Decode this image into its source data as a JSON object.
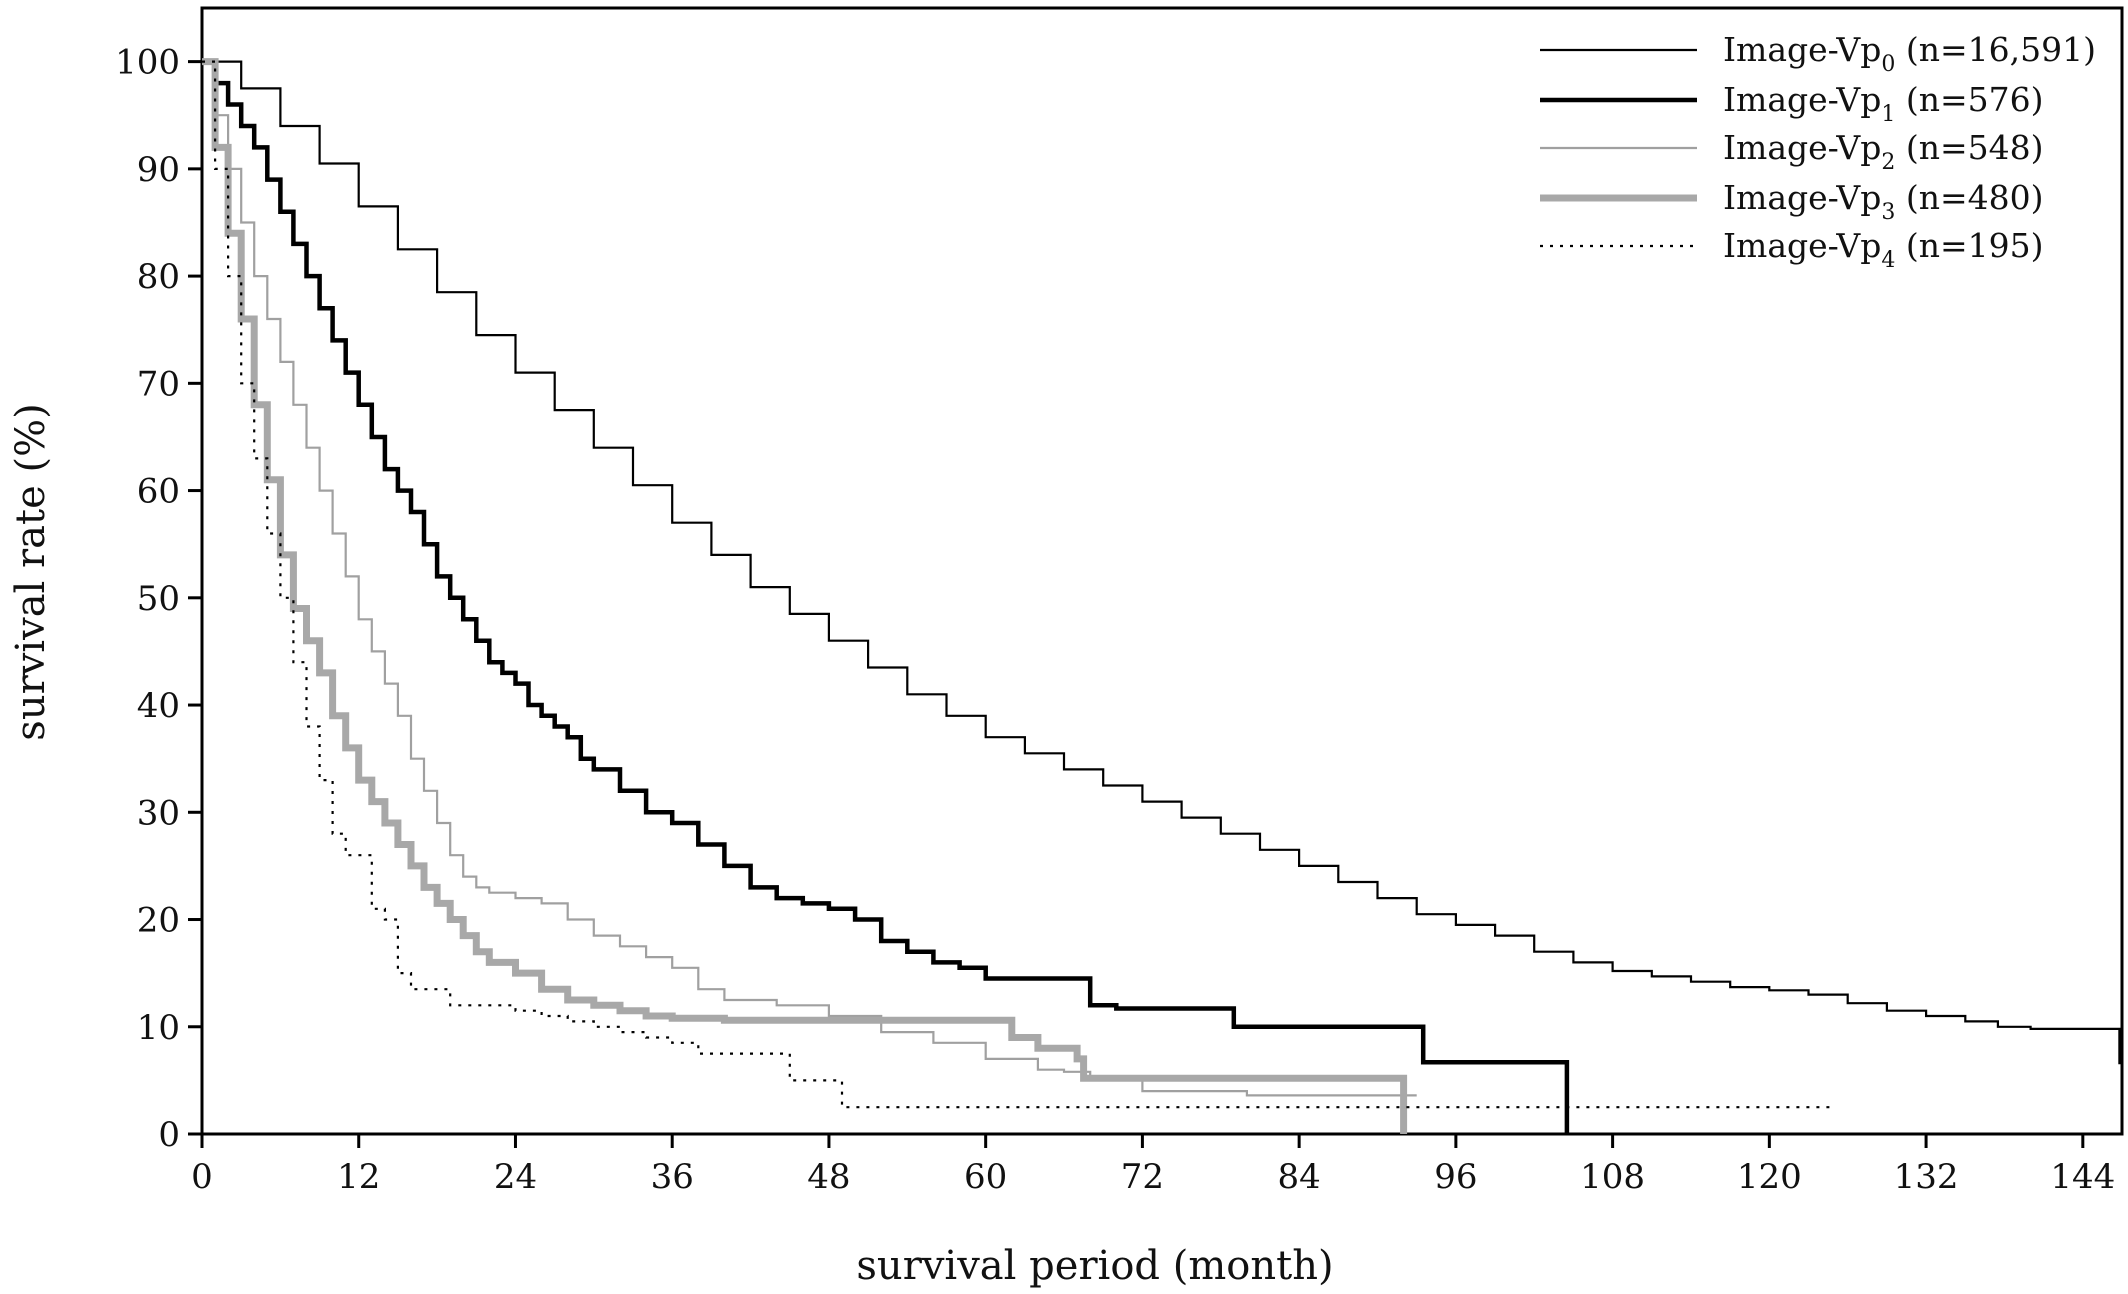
{
  "chart_data": {
    "type": "line",
    "title": "",
    "xlabel": "survival period (month)",
    "ylabel": "survival rate (%)",
    "xlim": [
      0,
      147
    ],
    "ylim": [
      0,
      105
    ],
    "xticks": [
      0,
      12,
      24,
      36,
      48,
      60,
      72,
      84,
      96,
      108,
      120,
      132,
      144
    ],
    "yticks": [
      0,
      10,
      20,
      30,
      40,
      50,
      60,
      70,
      80,
      90,
      100
    ],
    "grid": false,
    "legend_position": "top-right",
    "series": [
      {
        "name": "Image-Vp0 (n=16,591)",
        "label_main": "Image-Vp",
        "label_sub": "0",
        "label_n": "(n=16,591)",
        "color": "#000000",
        "width": 2.2,
        "dash": "",
        "points": [
          [
            0,
            100
          ],
          [
            3,
            97.5
          ],
          [
            6,
            94
          ],
          [
            9,
            90.5
          ],
          [
            12,
            86.5
          ],
          [
            15,
            82.5
          ],
          [
            18,
            78.5
          ],
          [
            21,
            74.5
          ],
          [
            24,
            71
          ],
          [
            27,
            67.5
          ],
          [
            30,
            64
          ],
          [
            33,
            60.5
          ],
          [
            36,
            57
          ],
          [
            39,
            54
          ],
          [
            42,
            51
          ],
          [
            45,
            48.5
          ],
          [
            48,
            46
          ],
          [
            51,
            43.5
          ],
          [
            54,
            41
          ],
          [
            57,
            39
          ],
          [
            60,
            37
          ],
          [
            63,
            35.5
          ],
          [
            66,
            34
          ],
          [
            69,
            32.5
          ],
          [
            72,
            31
          ],
          [
            75,
            29.5
          ],
          [
            78,
            28
          ],
          [
            81,
            26.5
          ],
          [
            84,
            25
          ],
          [
            87,
            23.5
          ],
          [
            90,
            22
          ],
          [
            93,
            20.5
          ],
          [
            96,
            19.5
          ],
          [
            99,
            18.5
          ],
          [
            102,
            17
          ],
          [
            105,
            16
          ],
          [
            108,
            15.2
          ],
          [
            111,
            14.7
          ],
          [
            114,
            14.2
          ],
          [
            117,
            13.7
          ],
          [
            120,
            13.4
          ],
          [
            123,
            13
          ],
          [
            126,
            12.2
          ],
          [
            129,
            11.5
          ],
          [
            132,
            11
          ],
          [
            135,
            10.5
          ],
          [
            137.5,
            10
          ],
          [
            140,
            9.8
          ],
          [
            146.8,
            9.8
          ],
          [
            146.8,
            6.5
          ]
        ]
      },
      {
        "name": "Image-Vp1 (n=576)",
        "label_main": "Image-Vp",
        "label_sub": "1",
        "label_n": "(n=576)",
        "color": "#000000",
        "width": 4.5,
        "dash": "",
        "points": [
          [
            0,
            100
          ],
          [
            1,
            98
          ],
          [
            2,
            96
          ],
          [
            3,
            94
          ],
          [
            4,
            92
          ],
          [
            5,
            89
          ],
          [
            6,
            86
          ],
          [
            7,
            83
          ],
          [
            8,
            80
          ],
          [
            9,
            77
          ],
          [
            10,
            74
          ],
          [
            11,
            71
          ],
          [
            12,
            68
          ],
          [
            13,
            65
          ],
          [
            14,
            62
          ],
          [
            15,
            60
          ],
          [
            16,
            58
          ],
          [
            17,
            55
          ],
          [
            18,
            52
          ],
          [
            19,
            50
          ],
          [
            20,
            48
          ],
          [
            21,
            46
          ],
          [
            22,
            44
          ],
          [
            23,
            43
          ],
          [
            24,
            42
          ],
          [
            25,
            40
          ],
          [
            26,
            39
          ],
          [
            27,
            38
          ],
          [
            28,
            37
          ],
          [
            29,
            35
          ],
          [
            30,
            34
          ],
          [
            32,
            32
          ],
          [
            34,
            30
          ],
          [
            36,
            29
          ],
          [
            38,
            27
          ],
          [
            40,
            25
          ],
          [
            42,
            23
          ],
          [
            44,
            22
          ],
          [
            46,
            21.5
          ],
          [
            48,
            21
          ],
          [
            50,
            20
          ],
          [
            52,
            18
          ],
          [
            54,
            17
          ],
          [
            56,
            16
          ],
          [
            58,
            15.5
          ],
          [
            60,
            14.5
          ],
          [
            62,
            14.5
          ],
          [
            64,
            14.5
          ],
          [
            66,
            14.5
          ],
          [
            67,
            14.5
          ],
          [
            68,
            12
          ],
          [
            70,
            11.7
          ],
          [
            76,
            11.7
          ],
          [
            79,
            11.7
          ],
          [
            79,
            10
          ],
          [
            93.5,
            10
          ],
          [
            93.5,
            6.7
          ],
          [
            104.5,
            6.7
          ],
          [
            104.5,
            0
          ]
        ]
      },
      {
        "name": "Image-Vp2 (n=548)",
        "label_main": "Image-Vp",
        "label_sub": "2",
        "label_n": "(n=548)",
        "color": "#a0a0a0",
        "width": 2.2,
        "dash": "",
        "points": [
          [
            0,
            100
          ],
          [
            1,
            95
          ],
          [
            2,
            90
          ],
          [
            3,
            85
          ],
          [
            4,
            80
          ],
          [
            5,
            76
          ],
          [
            6,
            72
          ],
          [
            7,
            68
          ],
          [
            8,
            64
          ],
          [
            9,
            60
          ],
          [
            10,
            56
          ],
          [
            11,
            52
          ],
          [
            12,
            48
          ],
          [
            13,
            45
          ],
          [
            14,
            42
          ],
          [
            15,
            39
          ],
          [
            16,
            35
          ],
          [
            17,
            32
          ],
          [
            18,
            29
          ],
          [
            19,
            26
          ],
          [
            20,
            24
          ],
          [
            21,
            23
          ],
          [
            22,
            22.5
          ],
          [
            24,
            22
          ],
          [
            26,
            21.5
          ],
          [
            28,
            20
          ],
          [
            30,
            18.5
          ],
          [
            32,
            17.5
          ],
          [
            34,
            16.5
          ],
          [
            36,
            15.5
          ],
          [
            38,
            13.5
          ],
          [
            40,
            12.5
          ],
          [
            44,
            12
          ],
          [
            48,
            11
          ],
          [
            52,
            9.5
          ],
          [
            56,
            8.5
          ],
          [
            60,
            7
          ],
          [
            64,
            6
          ],
          [
            66,
            5.8
          ],
          [
            68,
            5
          ],
          [
            72,
            4
          ],
          [
            80,
            3.6
          ],
          [
            93,
            3.6
          ]
        ]
      },
      {
        "name": "Image-Vp3 (n=480)",
        "label_main": "Image-Vp",
        "label_sub": "3",
        "label_n": "(n=480)",
        "color": "#a8a8a8",
        "width": 7,
        "dash": "",
        "points": [
          [
            0,
            100
          ],
          [
            1,
            92
          ],
          [
            2,
            84
          ],
          [
            3,
            76
          ],
          [
            4,
            68
          ],
          [
            5,
            61
          ],
          [
            6,
            54
          ],
          [
            7,
            49
          ],
          [
            8,
            46
          ],
          [
            9,
            43
          ],
          [
            10,
            39
          ],
          [
            11,
            36
          ],
          [
            12,
            33
          ],
          [
            13,
            31
          ],
          [
            14,
            29
          ],
          [
            15,
            27
          ],
          [
            16,
            25
          ],
          [
            17,
            23
          ],
          [
            18,
            21.5
          ],
          [
            19,
            20
          ],
          [
            20,
            18.5
          ],
          [
            21,
            17
          ],
          [
            22,
            16
          ],
          [
            24,
            15
          ],
          [
            26,
            13.5
          ],
          [
            28,
            12.5
          ],
          [
            30,
            12
          ],
          [
            32,
            11.5
          ],
          [
            34,
            11
          ],
          [
            36,
            10.8
          ],
          [
            40,
            10.6
          ],
          [
            44,
            10.6
          ],
          [
            48,
            10.6
          ],
          [
            60,
            10.6
          ],
          [
            62,
            9
          ],
          [
            64,
            8
          ],
          [
            67,
            7
          ],
          [
            67.5,
            5.2
          ],
          [
            92,
            5.2
          ],
          [
            92,
            0
          ]
        ]
      },
      {
        "name": "Image-Vp4 (n=195)",
        "label_main": "Image-Vp",
        "label_sub": "4",
        "label_n": "(n=195)",
        "color": "#000000",
        "width": 2.2,
        "dash": "3,7",
        "points": [
          [
            0,
            100
          ],
          [
            1,
            90
          ],
          [
            2,
            80
          ],
          [
            3,
            70
          ],
          [
            4,
            63
          ],
          [
            5,
            56
          ],
          [
            6,
            50
          ],
          [
            7,
            44
          ],
          [
            8,
            38
          ],
          [
            9,
            33
          ],
          [
            10,
            28
          ],
          [
            11,
            26
          ],
          [
            12,
            26
          ],
          [
            13,
            21
          ],
          [
            14,
            20
          ],
          [
            15,
            15
          ],
          [
            16,
            13.5
          ],
          [
            17,
            13.5
          ],
          [
            19,
            12
          ],
          [
            24,
            11.5
          ],
          [
            26,
            11
          ],
          [
            28,
            10.5
          ],
          [
            30,
            10
          ],
          [
            32,
            9.5
          ],
          [
            34,
            9
          ],
          [
            36,
            8.5
          ],
          [
            38,
            7.5
          ],
          [
            44,
            7.5
          ],
          [
            45,
            5
          ],
          [
            48,
            5
          ],
          [
            49,
            2.5
          ],
          [
            60,
            2.5
          ],
          [
            80,
            2.5
          ],
          [
            100,
            2.5
          ],
          [
            125,
            2.5
          ]
        ]
      }
    ]
  }
}
